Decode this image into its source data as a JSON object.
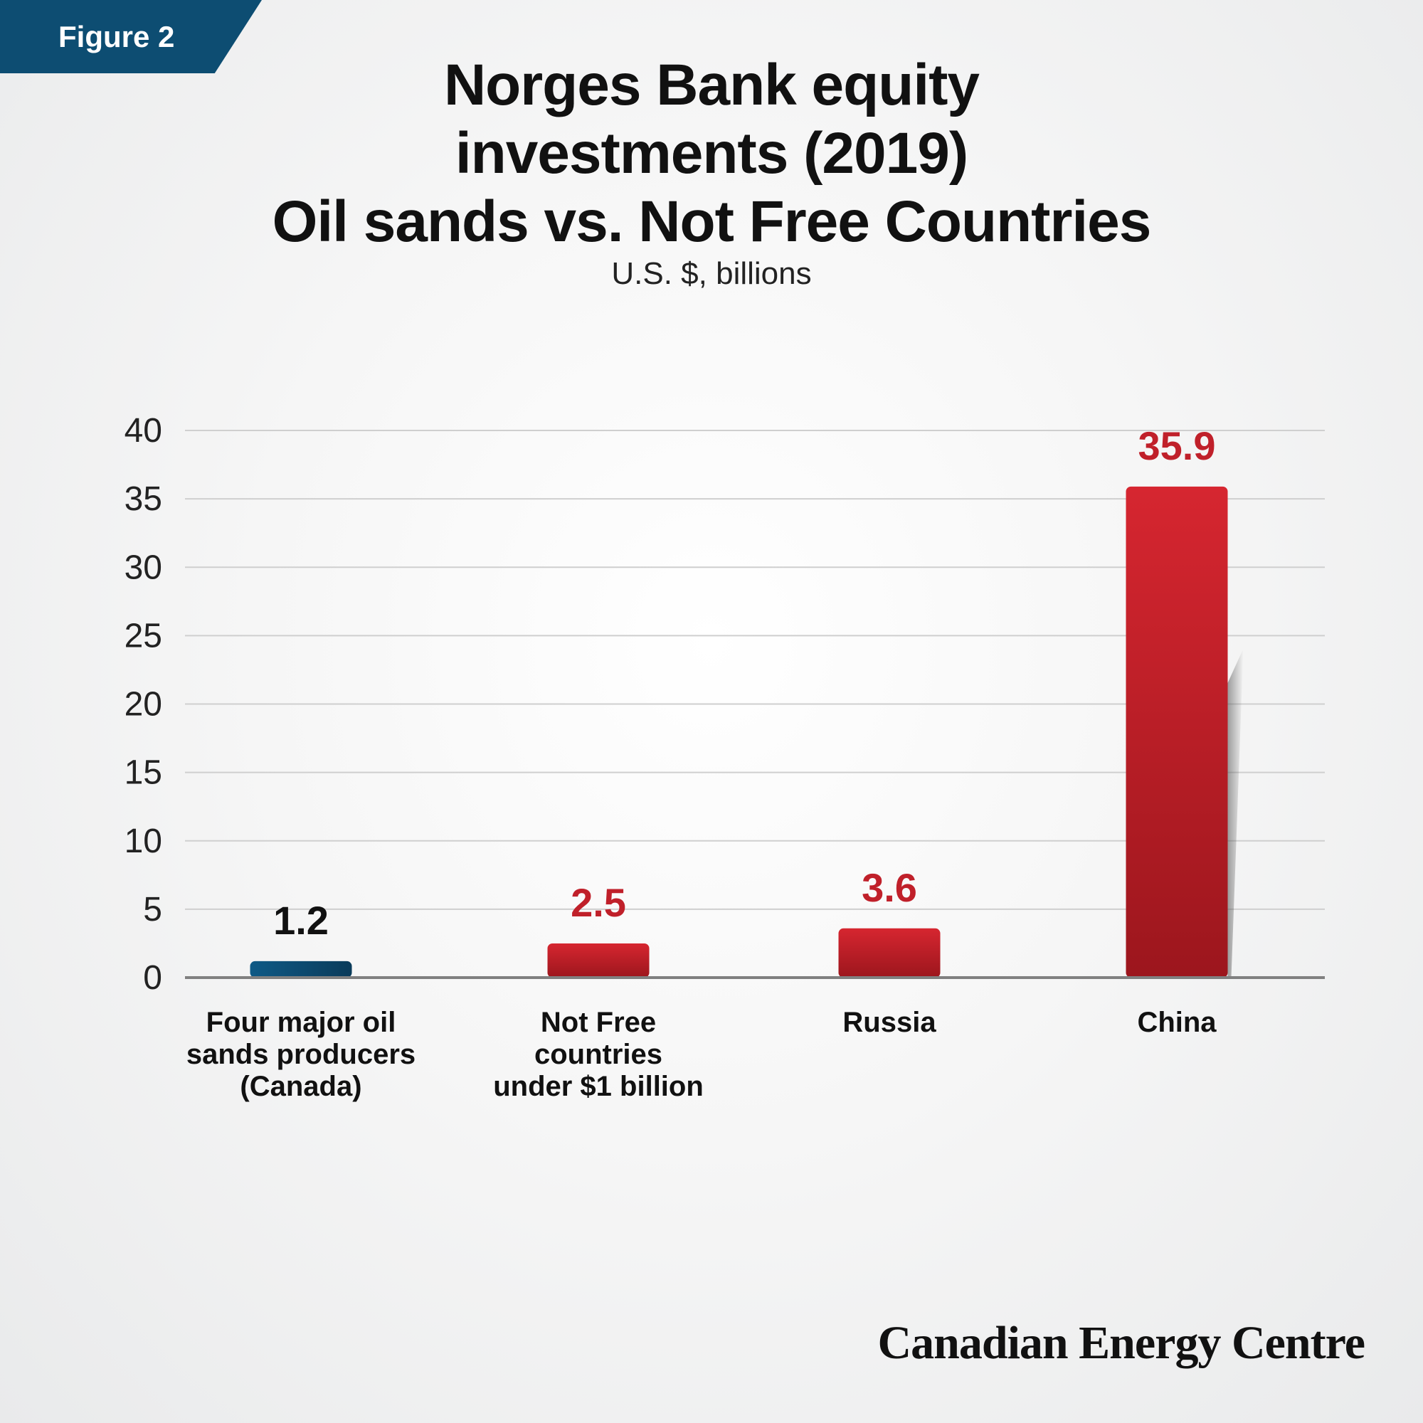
{
  "figure_label": "Figure 2",
  "title_lines": [
    "Norges Bank equity",
    "investments (2019)",
    "Oil sands vs. Not Free Countries"
  ],
  "subtitle": "U.S. $, billions",
  "brand": "Canadian Energy Centre",
  "colors": {
    "canada_bar": "#0d4d72",
    "not_free_bar": "#c0202a",
    "canada_label": "#111111",
    "not_free_label": "#c0202a",
    "gridline": "#cfcfcf",
    "axis": "#808080"
  },
  "chart_data": {
    "type": "bar",
    "title": "Norges Bank equity investments (2019) Oil sands vs. Not Free Countries",
    "ylabel": "U.S. $, billions",
    "ylim": [
      0,
      40
    ],
    "yticks": [
      0,
      5,
      10,
      15,
      20,
      25,
      30,
      35,
      40
    ],
    "grid": true,
    "categories": [
      [
        "Four major oil",
        "sands producers",
        "(Canada)"
      ],
      [
        "Not Free",
        "countries",
        "under $1 billion"
      ],
      [
        "Russia"
      ],
      [
        "China"
      ]
    ],
    "values": [
      1.2,
      2.5,
      3.6,
      35.9
    ],
    "value_labels": [
      "1.2",
      "2.5",
      "3.6",
      "35.9"
    ],
    "bar_groups": [
      "canada",
      "not_free",
      "not_free",
      "not_free"
    ]
  }
}
